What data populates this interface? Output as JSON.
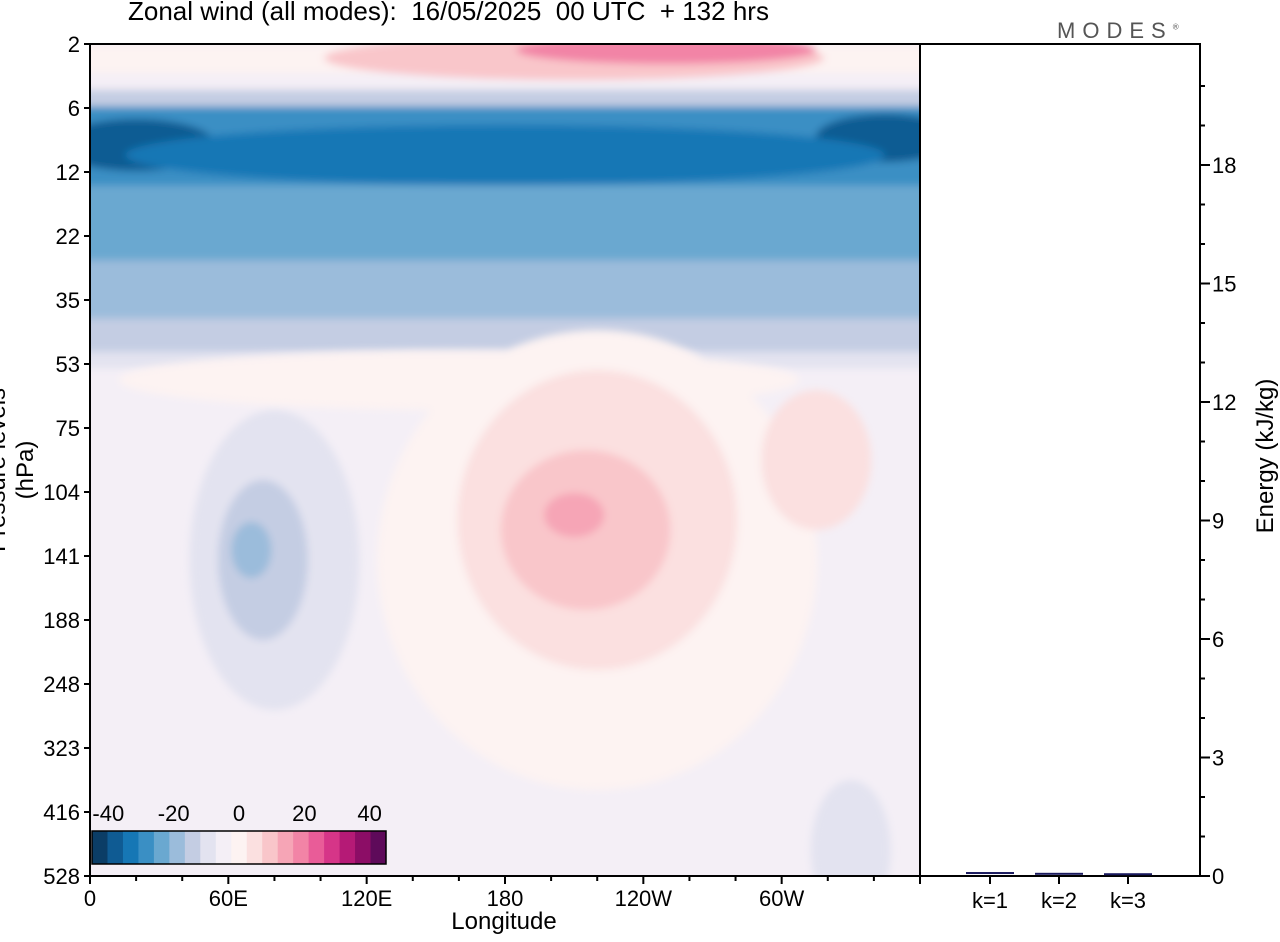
{
  "title": "Zonal wind (all modes):  16/05/2025  00 UTC  + 132 hrs",
  "brand": "MODES",
  "brand_mark": "®",
  "colors": {
    "palette": [
      "#0b3d66",
      "#0f5b93",
      "#1677b5",
      "#3a8fc4",
      "#6aa8d0",
      "#9bbcdb",
      "#c4cde3",
      "#e3e3f0",
      "#f4eff6",
      "#fdf3f2",
      "#fbe0e0",
      "#f9c6ca",
      "#f6a5b6",
      "#f284a6",
      "#e95c98",
      "#d63588",
      "#b51a76",
      "#8c0d66",
      "#5e0a5a"
    ],
    "frame": "#000000"
  },
  "chart_data": [
    {
      "type": "heatmap",
      "title": "Zonal wind (all modes):  16/05/2025  00 UTC  + 132 hrs",
      "xlabel": "Longitude",
      "ylabel": "Pressure levels (hPa)",
      "xlim": [
        0,
        360
      ],
      "x_ticks": [
        "0",
        "60E",
        "120E",
        "180",
        "120W",
        "60W"
      ],
      "y_levels": [
        "2",
        "6",
        "12",
        "22",
        "35",
        "53",
        "75",
        "104",
        "141",
        "188",
        "248",
        "323",
        "416",
        "528"
      ],
      "colorbar": {
        "ticks": [
          "-40",
          "-20",
          "0",
          "20",
          "40"
        ],
        "range": [
          -45,
          45
        ],
        "step": 5
      },
      "features": [
        {
          "name": "stratospheric easterly jet",
          "lon_range": [
            0,
            360
          ],
          "levels": [
            "6",
            "35"
          ],
          "min_value": -40
        },
        {
          "name": "westerly core 2hPa",
          "lon_range": [
            110,
            300
          ],
          "levels": [
            "2",
            "6"
          ],
          "max_value": 25
        },
        {
          "name": "easterly anomaly",
          "lon_range": [
            40,
            110
          ],
          "levels": [
            "75",
            "323"
          ],
          "min_value": -15
        },
        {
          "name": "westerly maximum",
          "lon_range": [
            170,
            250
          ],
          "levels": [
            "75",
            "248"
          ],
          "max_value": 25
        }
      ]
    },
    {
      "type": "bar",
      "categories": [
        "k=1",
        "k=2",
        "k=3"
      ],
      "values": [
        0.05,
        0.03,
        0.02
      ],
      "ylabel": "Energy (kJ/kg)",
      "ylim": [
        0,
        20
      ],
      "y_ticks": [
        "0",
        "3",
        "6",
        "9",
        "12",
        "15",
        "18"
      ]
    }
  ]
}
